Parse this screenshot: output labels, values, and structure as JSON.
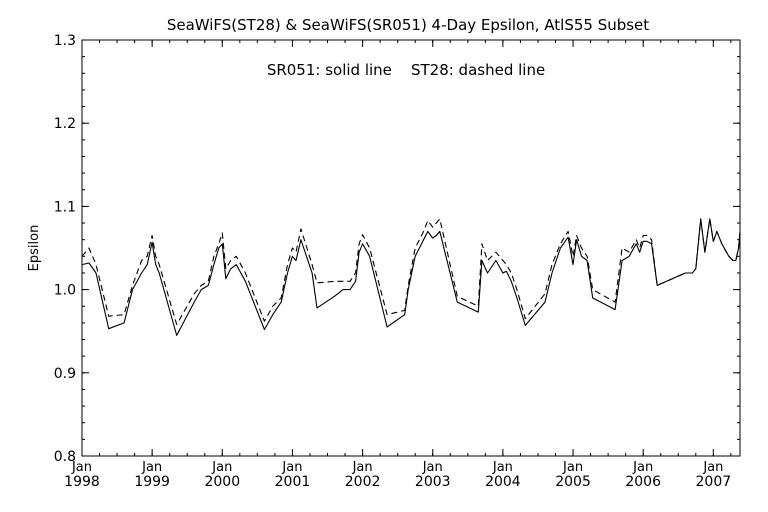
{
  "chart_data": {
    "type": "line",
    "title": "SeaWiFS(ST28) & SeaWiFS(SR051) 4-Day Epsilon, AtlS55 Subset",
    "annotation": "SR051: solid line    ST28: dashed line",
    "ylabel": "Epsilon",
    "xlabel": "",
    "ylim": [
      0.8,
      1.3
    ],
    "xlim": [
      1998.0,
      2007.38
    ],
    "y_ticks": [
      "0.8",
      "0.9",
      "1.0",
      "1.1",
      "1.2",
      "1.3"
    ],
    "x_ticks": [
      {
        "month": "Jan",
        "year": "1998"
      },
      {
        "month": "Jan",
        "year": "1999"
      },
      {
        "month": "Jan",
        "year": "2000"
      },
      {
        "month": "Jan",
        "year": "2001"
      },
      {
        "month": "Jan",
        "year": "2002"
      },
      {
        "month": "Jan",
        "year": "2003"
      },
      {
        "month": "Jan",
        "year": "2004"
      },
      {
        "month": "Jan",
        "year": "2005"
      },
      {
        "month": "Jan",
        "year": "2006"
      },
      {
        "month": "Jan",
        "year": "2007"
      }
    ],
    "grid": false,
    "series": [
      {
        "name": "SR051",
        "style": "solid",
        "color": "#000000",
        "x": [
          1998.0,
          1998.1,
          1998.2,
          1998.38,
          1998.6,
          1998.72,
          1998.85,
          1998.93,
          1999.0,
          1999.05,
          1999.1,
          1999.35,
          1999.6,
          1999.7,
          1999.8,
          1999.88,
          1999.95,
          2000.0,
          2000.05,
          2000.12,
          2000.2,
          2000.33,
          2000.6,
          2000.72,
          2000.84,
          2000.93,
          2001.0,
          2001.05,
          2001.12,
          2001.28,
          2001.35,
          2001.6,
          2001.72,
          2001.82,
          2001.9,
          2001.95,
          2002.0,
          2002.1,
          2002.35,
          2002.6,
          2002.65,
          2002.75,
          2002.87,
          2002.93,
          2003.0,
          2003.05,
          2003.1,
          2003.35,
          2003.65,
          2003.7,
          2003.78,
          2003.9,
          2004.0,
          2004.05,
          2004.12,
          2004.2,
          2004.32,
          2004.6,
          2004.7,
          2004.82,
          2004.93,
          2005.0,
          2005.05,
          2005.12,
          2005.2,
          2005.28,
          2005.6,
          2005.7,
          2005.8,
          2005.9,
          2005.95,
          2006.0,
          2006.05,
          2006.12,
          2006.2,
          2006.6,
          2006.7,
          2006.75,
          2006.82,
          2006.88,
          2006.95,
          2007.0,
          2007.05,
          2007.12,
          2007.22,
          2007.28,
          2007.32,
          2007.36,
          2007.38
        ],
        "y": [
          1.03,
          1.032,
          1.02,
          0.953,
          0.96,
          1.0,
          1.02,
          1.03,
          1.057,
          1.03,
          1.02,
          0.945,
          0.985,
          1.0,
          1.005,
          1.03,
          1.05,
          1.055,
          1.013,
          1.025,
          1.03,
          1.01,
          0.952,
          0.97,
          0.985,
          1.02,
          1.04,
          1.035,
          1.06,
          1.02,
          0.978,
          0.992,
          1.0,
          1.0,
          1.01,
          1.045,
          1.055,
          1.04,
          0.955,
          0.97,
          1.0,
          1.04,
          1.06,
          1.07,
          1.062,
          1.065,
          1.07,
          0.985,
          0.973,
          1.035,
          1.02,
          1.035,
          1.02,
          1.022,
          1.01,
          0.99,
          0.957,
          0.985,
          1.02,
          1.05,
          1.063,
          1.03,
          1.06,
          1.04,
          1.035,
          0.99,
          0.976,
          1.035,
          1.04,
          1.055,
          1.045,
          1.058,
          1.058,
          1.055,
          1.005,
          1.02,
          1.02,
          1.025,
          1.085,
          1.045,
          1.085,
          1.058,
          1.07,
          1.055,
          1.04,
          1.035,
          1.035,
          1.05,
          1.07
        ]
      },
      {
        "name": "ST28",
        "style": "dashed",
        "color": "#000000",
        "x": [
          1998.0,
          1998.1,
          1998.2,
          1998.38,
          1998.6,
          1998.72,
          1998.85,
          1998.93,
          1999.0,
          1999.05,
          1999.1,
          1999.35,
          1999.6,
          1999.7,
          1999.8,
          1999.88,
          1999.95,
          2000.0,
          2000.05,
          2000.12,
          2000.2,
          2000.33,
          2000.6,
          2000.72,
          2000.84,
          2000.93,
          2001.0,
          2001.05,
          2001.12,
          2001.28,
          2001.35,
          2001.6,
          2001.72,
          2001.82,
          2001.9,
          2001.95,
          2002.0,
          2002.1,
          2002.35,
          2002.6,
          2002.65,
          2002.75,
          2002.87,
          2002.93,
          2003.0,
          2003.05,
          2003.1,
          2003.35,
          2003.65,
          2003.7,
          2003.78,
          2003.9,
          2004.0,
          2004.05,
          2004.12,
          2004.2,
          2004.32,
          2004.6,
          2004.7,
          2004.82,
          2004.93,
          2005.0,
          2005.05,
          2005.12,
          2005.2,
          2005.28,
          2005.6,
          2005.7,
          2005.8,
          2005.9,
          2005.95,
          2006.0,
          2006.05,
          2006.12,
          2006.2,
          2006.6,
          2006.7,
          2006.75,
          2006.82,
          2006.88,
          2006.95,
          2007.0,
          2007.05,
          2007.12,
          2007.22,
          2007.28,
          2007.32,
          2007.36,
          2007.38
        ],
        "y": [
          1.04,
          1.05,
          1.03,
          0.968,
          0.97,
          1.005,
          1.035,
          1.04,
          1.065,
          1.04,
          1.03,
          0.958,
          0.995,
          1.005,
          1.01,
          1.04,
          1.055,
          1.068,
          1.025,
          1.035,
          1.04,
          1.02,
          0.962,
          0.98,
          0.99,
          1.03,
          1.05,
          1.045,
          1.073,
          1.03,
          1.008,
          1.01,
          1.01,
          1.01,
          1.02,
          1.055,
          1.066,
          1.05,
          0.97,
          0.975,
          1.005,
          1.05,
          1.07,
          1.083,
          1.075,
          1.08,
          1.085,
          0.992,
          0.98,
          1.055,
          1.035,
          1.045,
          1.035,
          1.03,
          1.02,
          1.0,
          0.965,
          0.995,
          1.03,
          1.055,
          1.07,
          1.04,
          1.065,
          1.05,
          1.04,
          1.0,
          0.985,
          1.05,
          1.045,
          1.06,
          1.05,
          1.065,
          1.065,
          1.06,
          1.005,
          1.02,
          1.02,
          1.025,
          1.085,
          1.045,
          1.085,
          1.058,
          1.07,
          1.055,
          1.04,
          1.035,
          1.035,
          1.05,
          1.07
        ]
      }
    ]
  }
}
